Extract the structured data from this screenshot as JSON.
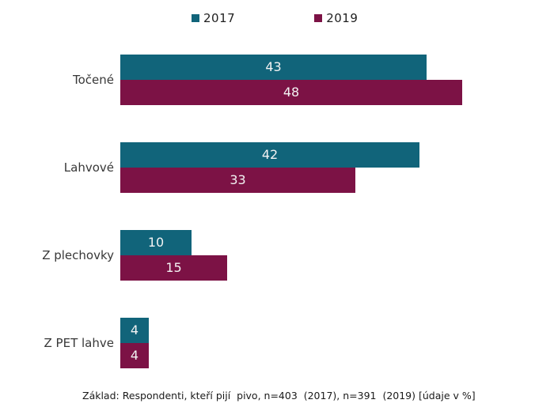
{
  "colors": {
    "series2017": "#11647A",
    "series2019": "#7C1245",
    "bar_label_text": "#f3f3f3",
    "category_text": "#383838",
    "footer_text": "#1a1a1a"
  },
  "legend": {
    "items": [
      {
        "label": "2017",
        "color": "#11647A"
      },
      {
        "label": "2019",
        "color": "#7C1245"
      }
    ]
  },
  "footer": {
    "note": "Základ: Respondenti, kteří pijí  pivo, n=403  (2017), n=391  (2019) [údaje v %]"
  },
  "chart_data": {
    "type": "bar",
    "orientation": "horizontal",
    "title": "",
    "categories": [
      "Točené",
      "Lahvové",
      "Z plechovky",
      "Z PET lahve"
    ],
    "series": [
      {
        "name": "2017",
        "color": "#11647A",
        "values": [
          43,
          42,
          10,
          4
        ]
      },
      {
        "name": "2019",
        "color": "#7C1245",
        "values": [
          48,
          33,
          15,
          4
        ]
      }
    ],
    "value_unit": "%",
    "xlim": [
      0,
      50
    ],
    "grid": false,
    "axes_visible": false,
    "legend_position": "top-center",
    "value_labels": "inside-center-white"
  }
}
